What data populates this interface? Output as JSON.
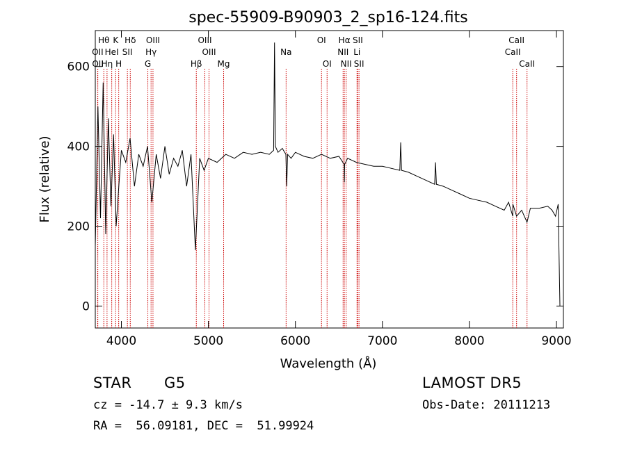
{
  "title": "spec-55909-B90903_2_sp16-124.fits",
  "info": {
    "object_class": "STAR",
    "subclass": "G5",
    "survey": "LAMOST DR5",
    "cz_text": "cz = -14.7 ± 9.3 km/s",
    "obs_date_text": "Obs-Date: 20111213",
    "coords_text": "RA =  56.09181, DEC =  51.99924"
  },
  "chart_data": {
    "type": "line",
    "title": "spec-55909-B90903_2_sp16-124.fits",
    "xlabel": "Wavelength (Å)",
    "ylabel": "Flux (relative)",
    "xlim": [
      3700,
      9080
    ],
    "ylim": [
      -55,
      690
    ],
    "xticks": [
      4000,
      5000,
      6000,
      7000,
      8000,
      9000
    ],
    "yticks": [
      0,
      200,
      400,
      600
    ],
    "grid": false,
    "line_color": "#000000",
    "marker_color": "#cc0000",
    "series": [
      {
        "x": [
          3700,
          3730,
          3760,
          3790,
          3820,
          3850,
          3880,
          3910,
          3940,
          3970,
          4000,
          4050,
          4100,
          4150,
          4200,
          4250,
          4300,
          4350,
          4400,
          4450,
          4500,
          4550,
          4600,
          4650,
          4700,
          4750,
          4800,
          4850,
          4900,
          4950,
          5000,
          5100,
          5200,
          5300,
          5400,
          5500,
          5600,
          5700,
          5750,
          5760,
          5770,
          5800,
          5850,
          5890,
          5900,
          5910,
          5950,
          6000,
          6100,
          6200,
          6300,
          6400,
          6500,
          6560,
          6563,
          6566,
          6600,
          6700,
          6800,
          6900,
          7000,
          7100,
          7200,
          7210,
          7220,
          7300,
          7400,
          7500,
          7600,
          7610,
          7620,
          7700,
          7800,
          7900,
          8000,
          8100,
          8200,
          8300,
          8400,
          8450,
          8498,
          8500,
          8542,
          8600,
          8662,
          8700,
          8800,
          8900,
          8950,
          8990,
          9020,
          9040
        ],
        "y": [
          150,
          500,
          220,
          560,
          180,
          470,
          250,
          430,
          200,
          300,
          390,
          360,
          420,
          300,
          380,
          350,
          400,
          260,
          380,
          320,
          400,
          330,
          370,
          350,
          390,
          300,
          380,
          140,
          370,
          340,
          370,
          360,
          380,
          370,
          385,
          380,
          385,
          380,
          390,
          660,
          400,
          385,
          395,
          380,
          300,
          380,
          370,
          385,
          375,
          370,
          380,
          370,
          375,
          355,
          310,
          355,
          370,
          360,
          355,
          350,
          350,
          345,
          340,
          410,
          340,
          335,
          325,
          315,
          305,
          360,
          305,
          300,
          290,
          280,
          270,
          265,
          260,
          250,
          240,
          260,
          225,
          255,
          225,
          240,
          210,
          245,
          245,
          250,
          240,
          225,
          255,
          0
        ]
      }
    ],
    "line_markers": [
      {
        "label": "Hθ",
        "x": 3798,
        "row": 1
      },
      {
        "label": "OII",
        "x": 3727,
        "row": 2
      },
      {
        "label": "OII",
        "x": 3729,
        "row": 3
      },
      {
        "label": "Hη",
        "x": 3835,
        "row": 3
      },
      {
        "label": "HeI",
        "x": 3889,
        "row": 2
      },
      {
        "label": "K",
        "x": 3934,
        "row": 1
      },
      {
        "label": "H",
        "x": 3969,
        "row": 3
      },
      {
        "label": "Hδ",
        "x": 4102,
        "row": 1
      },
      {
        "label": "SII",
        "x": 4069,
        "row": 2
      },
      {
        "label": "OIII",
        "x": 4363,
        "row": 1
      },
      {
        "label": "Hγ",
        "x": 4341,
        "row": 2
      },
      {
        "label": "G",
        "x": 4304,
        "row": 3
      },
      {
        "label": "OIII",
        "x": 4959,
        "row": 1
      },
      {
        "label": "OIII",
        "x": 5007,
        "row": 2
      },
      {
        "label": "Hβ",
        "x": 4861,
        "row": 3
      },
      {
        "label": "Mg",
        "x": 5175,
        "row": 3
      },
      {
        "label": "Na",
        "x": 5893,
        "row": 2
      },
      {
        "label": "OI",
        "x": 6300,
        "row": 1
      },
      {
        "label": "OI",
        "x": 6364,
        "row": 3
      },
      {
        "label": "Hα",
        "x": 6563,
        "row": 1
      },
      {
        "label": "NII",
        "x": 6548,
        "row": 2
      },
      {
        "label": "NII",
        "x": 6583,
        "row": 3
      },
      {
        "label": "SII",
        "x": 6717,
        "row": 1
      },
      {
        "label": "Li",
        "x": 6708,
        "row": 2
      },
      {
        "label": "SII",
        "x": 6731,
        "row": 3
      },
      {
        "label": "CaII",
        "x": 8542,
        "row": 1
      },
      {
        "label": "CaII",
        "x": 8498,
        "row": 2
      },
      {
        "label": "CaII",
        "x": 8662,
        "row": 3
      }
    ]
  }
}
